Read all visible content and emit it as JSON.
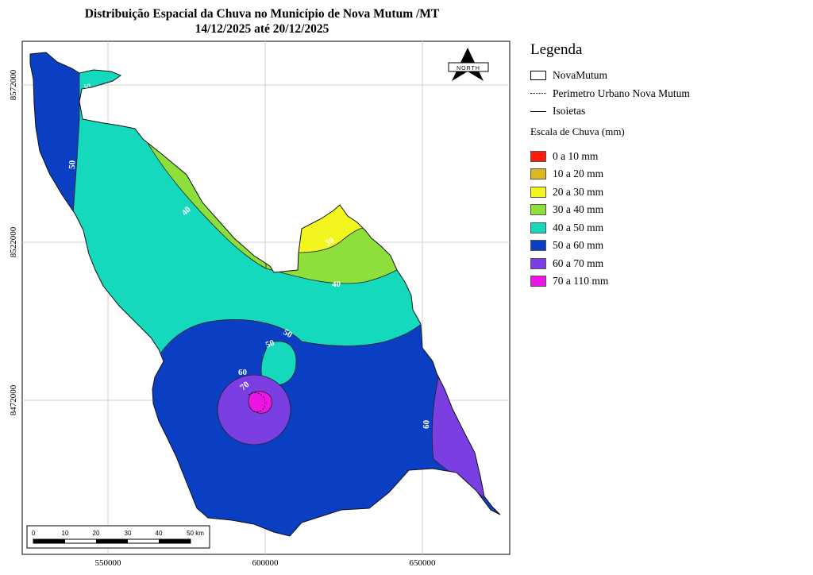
{
  "title": {
    "line1": "Distribuição Espacial da Chuva no Município de Nova Mutum /MT",
    "line2": "14/12/2025 até 20/12/2025"
  },
  "legend": {
    "title": "Legenda",
    "items": [
      {
        "label": "NovaMutum",
        "symbol": "box"
      },
      {
        "label": "Perimetro Urbano Nova Mutum",
        "symbol": "dotted-line"
      },
      {
        "label": "Isoietas",
        "symbol": "line"
      }
    ],
    "scale_title": "Escala de Chuva (mm)",
    "classes": [
      {
        "label": "0 a 10 mm",
        "color": "#ff1a0a"
      },
      {
        "label": "10 a 20 mm",
        "color": "#dcb820"
      },
      {
        "label": "20 a 30 mm",
        "color": "#f2f51e"
      },
      {
        "label": "30 a 40 mm",
        "color": "#8ede3c"
      },
      {
        "label": "40 a 50 mm",
        "color": "#14d9bc"
      },
      {
        "label": "50 a 60 mm",
        "color": "#0a3fc4"
      },
      {
        "label": "60 a 70 mm",
        "color": "#7a3ee3"
      },
      {
        "label": "70 a 110 mm",
        "color": "#ee14e6"
      }
    ]
  },
  "axes": {
    "x_ticks": [
      "550000",
      "600000",
      "650000"
    ],
    "y_ticks": [
      "8572000",
      "8522000",
      "8472000"
    ]
  },
  "isoline_labels": [
    "50",
    "50",
    "40",
    "30",
    "40",
    "50",
    "50",
    "60",
    "70",
    "60"
  ],
  "north_arrow": {
    "label": "NORTH"
  },
  "scale_bar": {
    "ticks": [
      "0",
      "10",
      "20",
      "30",
      "40",
      "50 km"
    ]
  }
}
